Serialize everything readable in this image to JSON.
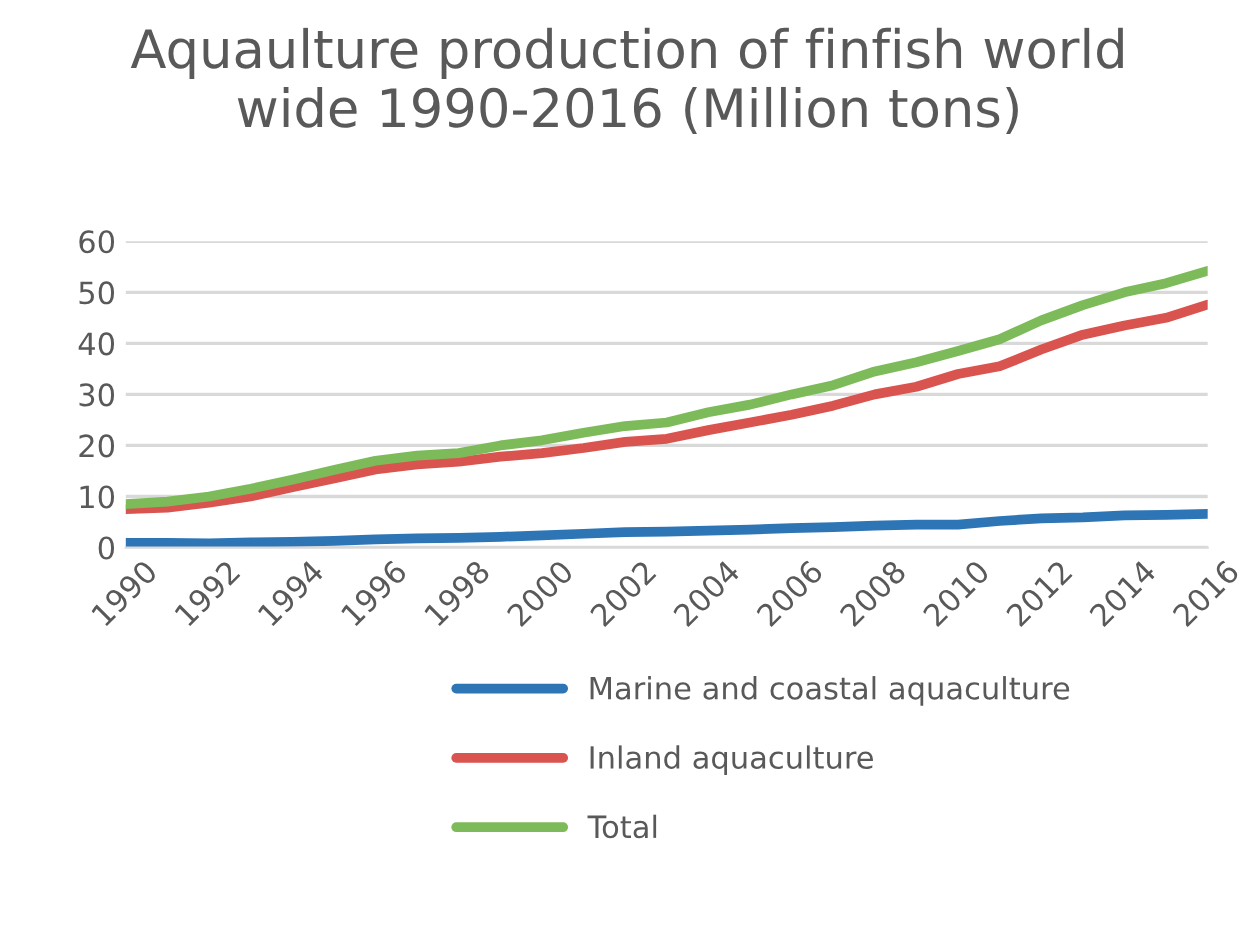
{
  "chart_data": {
    "type": "line",
    "title": "Aquaulture production of finfish world\nwide 1990-2016 (Million tons)",
    "x": [
      1990,
      1991,
      1992,
      1993,
      1994,
      1995,
      1996,
      1997,
      1998,
      1999,
      2000,
      2001,
      2002,
      2003,
      2004,
      2005,
      2006,
      2007,
      2008,
      2009,
      2010,
      2011,
      2012,
      2013,
      2014,
      2015,
      2016
    ],
    "series": [
      {
        "name": "Marine and coastal aquaculture",
        "color": "#2e75b6",
        "values": [
          0.9,
          0.9,
          0.8,
          1,
          1.1,
          1.3,
          1.6,
          1.8,
          1.9,
          2.1,
          2.4,
          2.7,
          3,
          3.1,
          3.3,
          3.5,
          3.8,
          4,
          4.3,
          4.5,
          4.5,
          5.2,
          5.7,
          5.9,
          6.3,
          6.4,
          6.6
        ]
      },
      {
        "name": "Inland aquaculture",
        "color": "#d9534f",
        "values": [
          7.5,
          7.8,
          8.8,
          10,
          11.8,
          13.5,
          15.3,
          16.3,
          16.8,
          17.8,
          18.5,
          19.5,
          20.7,
          21.3,
          23,
          24.5,
          26,
          27.8,
          30,
          31.5,
          34,
          35.5,
          38.8,
          41.7,
          43.5,
          45,
          47.6
        ]
      },
      {
        "name": "Total",
        "color": "#7dbb5a",
        "values": [
          8.5,
          9,
          10,
          11.5,
          13.3,
          15.2,
          17,
          18,
          18.5,
          20,
          21,
          22.5,
          23.8,
          24.5,
          26.5,
          28,
          30,
          31.8,
          34.5,
          36.3,
          38.5,
          40.8,
          44.5,
          47.5,
          50,
          51.8,
          54.2
        ]
      }
    ],
    "xlim": [
      1990,
      2016
    ],
    "xticks": [
      1990,
      1992,
      1994,
      1996,
      1998,
      2000,
      2002,
      2004,
      2006,
      2008,
      2010,
      2012,
      2014,
      2016
    ],
    "ylim": [
      0,
      60
    ],
    "yticks": [
      0,
      10,
      20,
      30,
      40,
      50,
      60
    ],
    "grid": "y",
    "legend": "bottom",
    "line_style": "solid",
    "marker": "none"
  }
}
